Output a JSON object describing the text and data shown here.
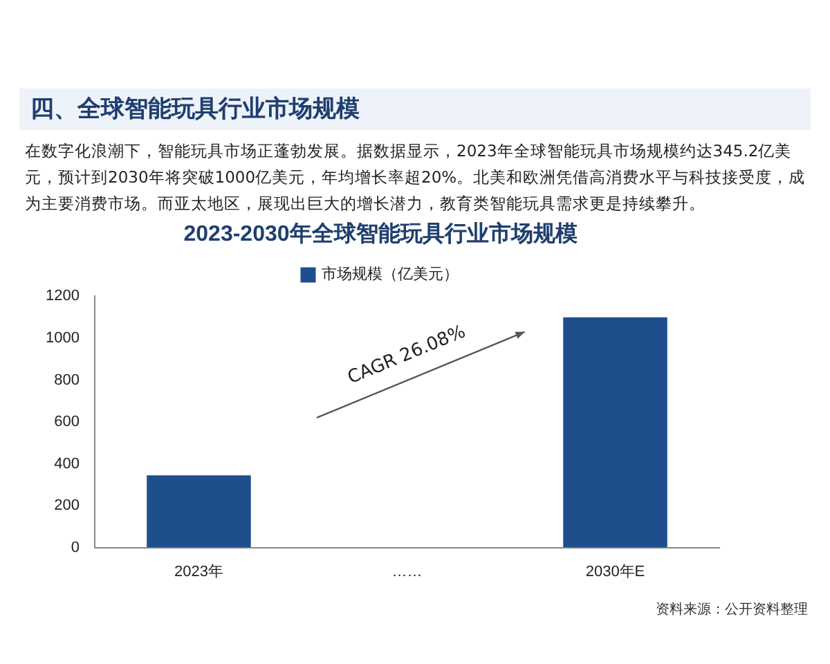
{
  "chart_data": {
    "type": "bar",
    "title": "2023-2030年全球智能玩具行业市场规模",
    "categories": [
      "2023年",
      "……",
      "2030年E"
    ],
    "series": [
      {
        "name": "市场规模（亿美元）",
        "color": "#1f4e8c",
        "values": [
          345,
          null,
          1100
        ]
      }
    ],
    "ylim": [
      0,
      1200
    ],
    "yticks": [
      0,
      200,
      400,
      600,
      800,
      1000,
      1200
    ],
    "grid": false,
    "legend": "top",
    "annotations": [
      "四、全球智能玩具行业市场规模",
      "在数字化浪潮下，智能玩具市场正蓬勃发展。据数据显示，2023年全球智能玩具市场规模约达345.2亿美元，预计到2030年将突破1000亿美元，年均增长率超20%。北美和欧洲凭借高消费水平与科技接受度，成为主要消费市场。而亚太地区，展现出巨大的增长潜力，教育类智能玩具需求更是持续攀升。",
      "CAGR 26.08%",
      "资料来源：公开资料整理"
    ]
  }
}
